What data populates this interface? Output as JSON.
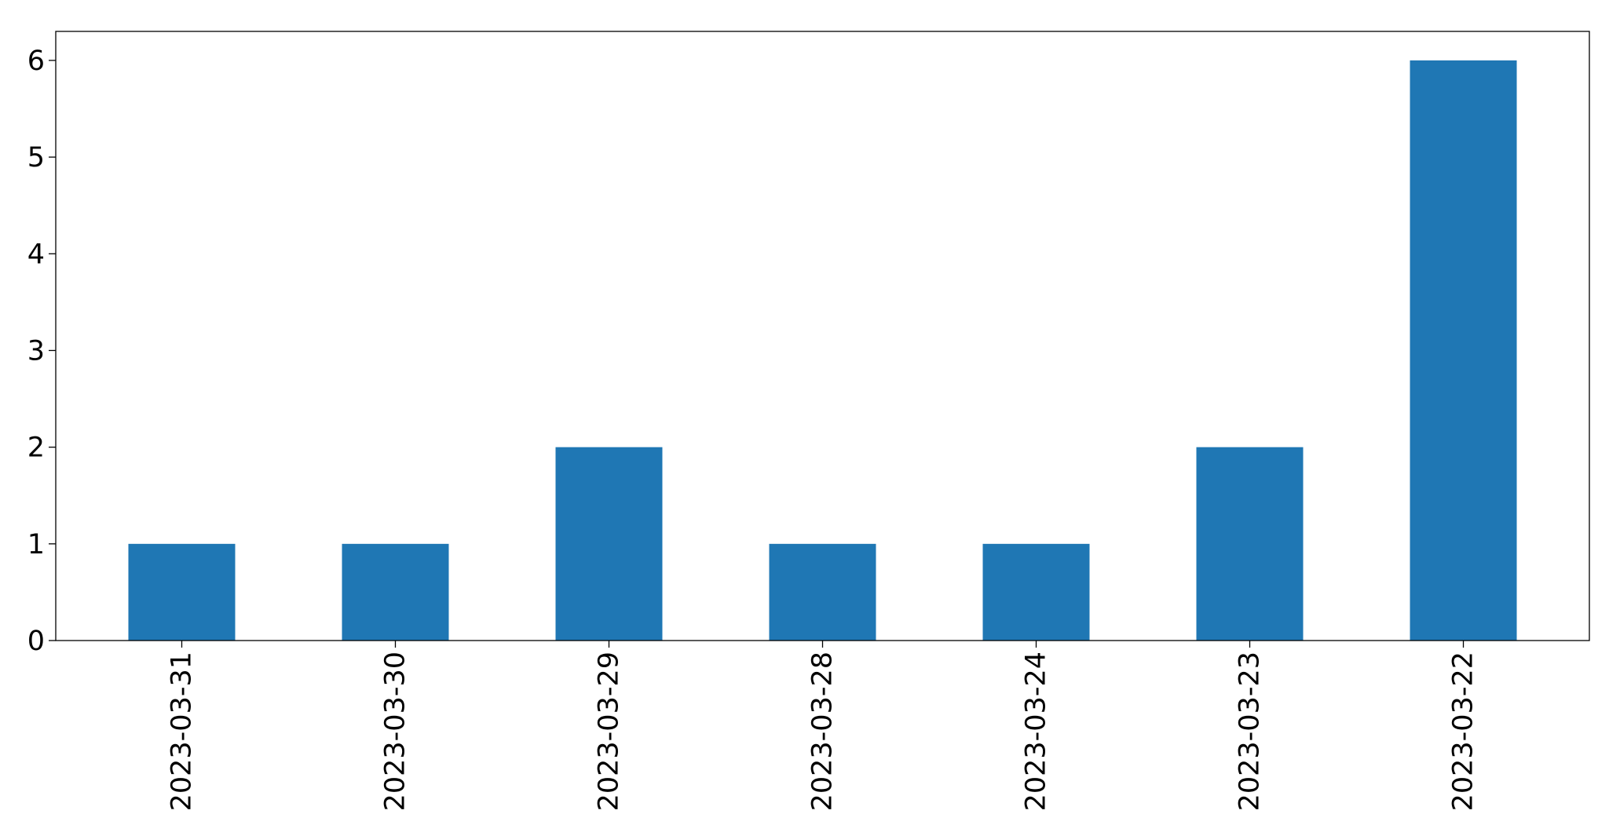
{
  "chart_data": {
    "type": "bar",
    "title": "",
    "xlabel": "",
    "ylabel": "",
    "categories": [
      "2023-03-31",
      "2023-03-30",
      "2023-03-29",
      "2023-03-28",
      "2023-03-24",
      "2023-03-23",
      "2023-03-22"
    ],
    "values": [
      1,
      1,
      2,
      1,
      1,
      2,
      6
    ],
    "ylim": [
      0,
      6.3
    ],
    "yticks": [
      0,
      1,
      2,
      3,
      4,
      5,
      6
    ],
    "grid": false,
    "legend": "none",
    "bar_color": "#1f77b4",
    "axis_color": "#000000"
  }
}
